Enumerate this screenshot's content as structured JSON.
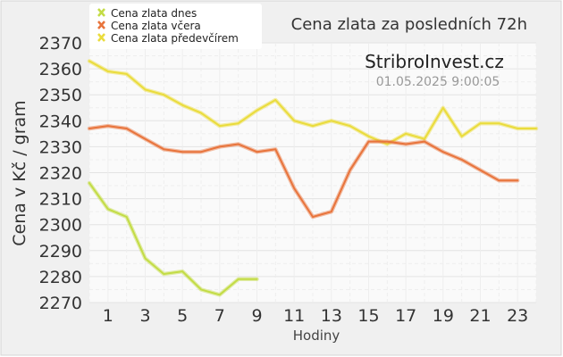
{
  "chart_data": {
    "type": "line",
    "title": "Cena zlata za posledních 72h",
    "watermark": "StribroInvest.cz",
    "timestamp": "01.05.2025 9:00:05",
    "xlabel": "Hodiny",
    "ylabel": "Cena v Kč / gram",
    "x_ticks": [
      1,
      3,
      5,
      7,
      9,
      11,
      13,
      15,
      17,
      19,
      21,
      23
    ],
    "y_ticks": [
      2270,
      2280,
      2290,
      2300,
      2310,
      2320,
      2330,
      2340,
      2350,
      2360,
      2370
    ],
    "xlim": [
      0,
      24
    ],
    "ylim": [
      2270,
      2370
    ],
    "grid": true,
    "legend_position": "top-left",
    "series": [
      {
        "name": "Cena zlata dnes",
        "color": "#c3dc45",
        "x": [
          0,
          1,
          2,
          3,
          4,
          5,
          6,
          7,
          8,
          9
        ],
        "y": [
          2316,
          2306,
          2303,
          2287,
          2281,
          2282,
          2275,
          2273,
          2279,
          2279
        ]
      },
      {
        "name": "Cena zlata včera",
        "color": "#e8743c",
        "x": [
          0,
          1,
          2,
          3,
          4,
          5,
          6,
          7,
          8,
          9,
          10,
          11,
          12,
          13,
          14,
          15,
          16,
          17,
          18,
          19,
          20,
          21,
          22,
          23
        ],
        "y": [
          2337,
          2338,
          2337,
          2333,
          2329,
          2328,
          2328,
          2330,
          2331,
          2328,
          2329,
          2314,
          2303,
          2305,
          2321,
          2332,
          2332,
          2331,
          2332,
          2328,
          2325,
          2321,
          2317,
          2317
        ]
      },
      {
        "name": "Cena zlata předevčírem",
        "color": "#eadc3c",
        "x": [
          0,
          1,
          2,
          3,
          4,
          5,
          6,
          7,
          8,
          9,
          10,
          11,
          12,
          13,
          14,
          15,
          16,
          17,
          18,
          19,
          20,
          21,
          22,
          23,
          24
        ],
        "y": [
          2363,
          2359,
          2358,
          2352,
          2350,
          2346,
          2343,
          2338,
          2339,
          2344,
          2348,
          2340,
          2338,
          2340,
          2338,
          2334,
          2331,
          2335,
          2333,
          2345,
          2334,
          2339,
          2339,
          2337,
          2337
        ]
      }
    ]
  }
}
